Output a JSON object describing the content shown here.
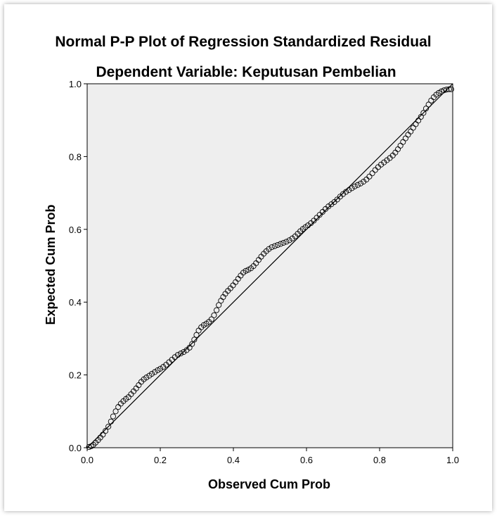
{
  "chart_data": {
    "type": "scatter",
    "title": "Normal P-P Plot of Regression Standardized Residual",
    "subtitle": "Dependent Variable: Keputusan Pembelian",
    "xlabel": "Observed Cum Prob",
    "ylabel": "Expected Cum Prob",
    "xlim": [
      0.0,
      1.0
    ],
    "ylim": [
      0.0,
      1.0
    ],
    "xticks": [
      "0.0",
      "0.2",
      "0.4",
      "0.6",
      "0.8",
      "1.0"
    ],
    "yticks": [
      "0.0",
      "0.2",
      "0.4",
      "0.6",
      "0.8",
      "1.0"
    ],
    "reference_line": {
      "from": [
        0.0,
        0.0
      ],
      "to": [
        1.0,
        1.0
      ]
    },
    "grid": false,
    "background_color": "#eeeeee",
    "marker_color": "#000000",
    "points": [
      [
        0.005,
        0.002
      ],
      [
        0.011,
        0.004
      ],
      [
        0.017,
        0.008
      ],
      [
        0.023,
        0.014
      ],
      [
        0.03,
        0.021
      ],
      [
        0.036,
        0.028
      ],
      [
        0.043,
        0.036
      ],
      [
        0.05,
        0.046
      ],
      [
        0.058,
        0.058
      ],
      [
        0.065,
        0.072
      ],
      [
        0.071,
        0.086
      ],
      [
        0.078,
        0.1
      ],
      [
        0.085,
        0.112
      ],
      [
        0.092,
        0.121
      ],
      [
        0.099,
        0.128
      ],
      [
        0.106,
        0.134
      ],
      [
        0.113,
        0.139
      ],
      [
        0.12,
        0.147
      ],
      [
        0.127,
        0.155
      ],
      [
        0.134,
        0.163
      ],
      [
        0.141,
        0.172
      ],
      [
        0.148,
        0.181
      ],
      [
        0.155,
        0.188
      ],
      [
        0.162,
        0.193
      ],
      [
        0.17,
        0.198
      ],
      [
        0.177,
        0.203
      ],
      [
        0.185,
        0.208
      ],
      [
        0.193,
        0.213
      ],
      [
        0.2,
        0.217
      ],
      [
        0.208,
        0.222
      ],
      [
        0.216,
        0.228
      ],
      [
        0.224,
        0.235
      ],
      [
        0.232,
        0.242
      ],
      [
        0.24,
        0.249
      ],
      [
        0.248,
        0.255
      ],
      [
        0.256,
        0.259
      ],
      [
        0.264,
        0.263
      ],
      [
        0.272,
        0.268
      ],
      [
        0.28,
        0.275
      ],
      [
        0.287,
        0.285
      ],
      [
        0.293,
        0.297
      ],
      [
        0.299,
        0.31
      ],
      [
        0.305,
        0.322
      ],
      [
        0.312,
        0.331
      ],
      [
        0.319,
        0.337
      ],
      [
        0.326,
        0.341
      ],
      [
        0.333,
        0.346
      ],
      [
        0.34,
        0.353
      ],
      [
        0.347,
        0.364
      ],
      [
        0.354,
        0.378
      ],
      [
        0.36,
        0.392
      ],
      [
        0.366,
        0.404
      ],
      [
        0.372,
        0.414
      ],
      [
        0.378,
        0.423
      ],
      [
        0.385,
        0.431
      ],
      [
        0.392,
        0.438
      ],
      [
        0.399,
        0.446
      ],
      [
        0.406,
        0.455
      ],
      [
        0.413,
        0.464
      ],
      [
        0.42,
        0.473
      ],
      [
        0.427,
        0.481
      ],
      [
        0.434,
        0.486
      ],
      [
        0.441,
        0.489
      ],
      [
        0.448,
        0.493
      ],
      [
        0.455,
        0.499
      ],
      [
        0.462,
        0.507
      ],
      [
        0.469,
        0.516
      ],
      [
        0.476,
        0.525
      ],
      [
        0.483,
        0.533
      ],
      [
        0.49,
        0.54
      ],
      [
        0.497,
        0.546
      ],
      [
        0.505,
        0.551
      ],
      [
        0.513,
        0.554
      ],
      [
        0.521,
        0.557
      ],
      [
        0.529,
        0.56
      ],
      [
        0.537,
        0.563
      ],
      [
        0.545,
        0.566
      ],
      [
        0.553,
        0.57
      ],
      [
        0.561,
        0.575
      ],
      [
        0.569,
        0.581
      ],
      [
        0.576,
        0.588
      ],
      [
        0.583,
        0.595
      ],
      [
        0.59,
        0.601
      ],
      [
        0.597,
        0.606
      ],
      [
        0.604,
        0.611
      ],
      [
        0.612,
        0.617
      ],
      [
        0.62,
        0.624
      ],
      [
        0.628,
        0.632
      ],
      [
        0.636,
        0.64
      ],
      [
        0.644,
        0.648
      ],
      [
        0.652,
        0.656
      ],
      [
        0.66,
        0.663
      ],
      [
        0.668,
        0.669
      ],
      [
        0.676,
        0.675
      ],
      [
        0.684,
        0.682
      ],
      [
        0.692,
        0.69
      ],
      [
        0.7,
        0.697
      ],
      [
        0.708,
        0.703
      ],
      [
        0.716,
        0.708
      ],
      [
        0.724,
        0.713
      ],
      [
        0.732,
        0.718
      ],
      [
        0.74,
        0.722
      ],
      [
        0.748,
        0.726
      ],
      [
        0.756,
        0.731
      ],
      [
        0.764,
        0.737
      ],
      [
        0.772,
        0.745
      ],
      [
        0.78,
        0.754
      ],
      [
        0.788,
        0.763
      ],
      [
        0.796,
        0.771
      ],
      [
        0.804,
        0.778
      ],
      [
        0.812,
        0.784
      ],
      [
        0.82,
        0.79
      ],
      [
        0.828,
        0.796
      ],
      [
        0.836,
        0.803
      ],
      [
        0.843,
        0.811
      ],
      [
        0.85,
        0.82
      ],
      [
        0.857,
        0.83
      ],
      [
        0.864,
        0.84
      ],
      [
        0.871,
        0.85
      ],
      [
        0.878,
        0.86
      ],
      [
        0.885,
        0.869
      ],
      [
        0.892,
        0.879
      ],
      [
        0.899,
        0.889
      ],
      [
        0.906,
        0.899
      ],
      [
        0.913,
        0.909
      ],
      [
        0.92,
        0.92
      ],
      [
        0.927,
        0.932
      ],
      [
        0.934,
        0.943
      ],
      [
        0.941,
        0.954
      ],
      [
        0.948,
        0.963
      ],
      [
        0.955,
        0.97
      ],
      [
        0.962,
        0.975
      ],
      [
        0.969,
        0.979
      ],
      [
        0.976,
        0.982
      ],
      [
        0.983,
        0.984
      ],
      [
        0.99,
        0.985
      ],
      [
        0.996,
        0.985
      ]
    ]
  }
}
